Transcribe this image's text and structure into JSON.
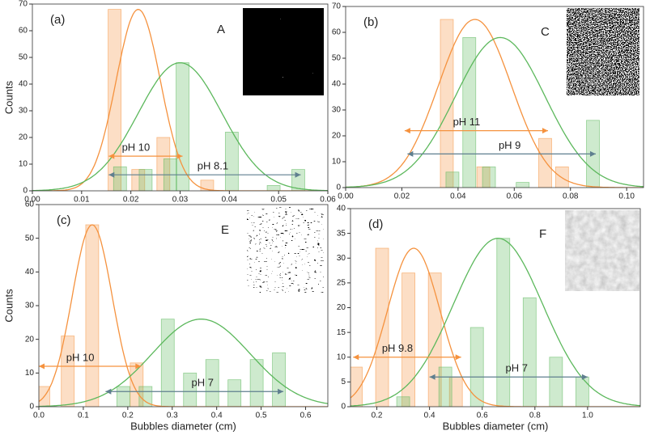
{
  "chart_data": [
    {
      "type": "bar",
      "label": "(a)",
      "letter": "A",
      "ylabel": "Counts",
      "xlim": [
        0,
        0.06
      ],
      "xticks": [
        {
          "value": 0,
          "label": "0.00"
        },
        0.01,
        0.02,
        0.03,
        0.04,
        0.05,
        0.06
      ],
      "ylim": [
        0,
        70
      ],
      "yticks": [
        0,
        10,
        20,
        30,
        40,
        50,
        60,
        70
      ],
      "series": [
        {
          "color": "#f5923e",
          "x": [
            0.0167,
            0.0215,
            0.0266,
            0.0355
          ],
          "values": [
            68,
            8,
            20,
            4
          ]
        },
        {
          "color": "#5cb85c",
          "x": [
            0.0178,
            0.023,
            0.028,
            0.0305,
            0.0405,
            0.049,
            0.054
          ],
          "values": [
            9,
            8,
            12,
            48,
            22,
            2,
            8
          ]
        }
      ],
      "curves": [
        {
          "color": "#f5923e",
          "center": 0.0215,
          "peak": 68,
          "sigma": 0.0045
        },
        {
          "color": "#5cb85c",
          "center": 0.03,
          "peak": 48,
          "sigma": 0.0085
        }
      ],
      "arrows": [
        {
          "color": "#f5923e",
          "label": "pH 10",
          "from": 0.0155,
          "to": 0.0305,
          "y": 13
        },
        {
          "color": "#5f7f8f",
          "label": "pH 8.1",
          "from": 0.0155,
          "to": 0.0545,
          "y": 6
        }
      ]
    },
    {
      "type": "bar",
      "label": "(b)",
      "letter": "C",
      "xlim": [
        0,
        0.106
      ],
      "xticks": [
        {
          "value": 0,
          "label": "0.00"
        },
        0.02,
        0.04,
        0.06,
        0.08,
        {
          "value": 0.1,
          "label": "0.10"
        }
      ],
      "ylim": [
        0,
        70
      ],
      "yticks": [
        0,
        10,
        20,
        30,
        40,
        50,
        60,
        70
      ],
      "series": [
        {
          "color": "#f5923e",
          "x": [
            0.036,
            0.049,
            0.071,
            0.077
          ],
          "values": [
            65,
            8,
            19,
            8
          ]
        },
        {
          "color": "#5cb85c",
          "x": [
            0.038,
            0.044,
            0.051,
            0.063,
            0.088
          ],
          "values": [
            6,
            58,
            8,
            2,
            26
          ]
        }
      ],
      "curves": [
        {
          "color": "#f5923e",
          "center": 0.046,
          "peak": 65,
          "sigma": 0.013
        },
        {
          "color": "#5cb85c",
          "center": 0.055,
          "peak": 58,
          "sigma": 0.016
        }
      ],
      "arrows": [
        {
          "color": "#f5923e",
          "label": "pH 11",
          "from": 0.021,
          "to": 0.072,
          "y": 22
        },
        {
          "color": "#5f7f8f",
          "label": "pH 9",
          "from": 0.022,
          "to": 0.089,
          "y": 13
        }
      ]
    },
    {
      "type": "bar",
      "label": "(c)",
      "letter": "E",
      "ylabel": "Counts",
      "xlabel": "Bubbles diameter (cm)",
      "xlim": [
        0,
        0.65
      ],
      "xticks": [
        {
          "value": 0,
          "label": "0.0"
        },
        0.1,
        0.2,
        0.3,
        0.4,
        0.5,
        0.6
      ],
      "ylim": [
        0,
        60
      ],
      "yticks": [
        0,
        10,
        20,
        30,
        40,
        50,
        60
      ],
      "series": [
        {
          "color": "#f5923e",
          "x": [
            0.01,
            0.065,
            0.12,
            0.22
          ],
          "values": [
            6,
            21,
            54,
            13
          ]
        },
        {
          "color": "#5cb85c",
          "x": [
            0.19,
            0.24,
            0.29,
            0.34,
            0.39,
            0.44,
            0.49,
            0.54
          ],
          "values": [
            6,
            6,
            26,
            10,
            14,
            8,
            14,
            16
          ]
        }
      ],
      "curves": [
        {
          "color": "#f5923e",
          "center": 0.12,
          "peak": 54,
          "sigma": 0.045
        },
        {
          "color": "#5cb85c",
          "center": 0.365,
          "peak": 26,
          "sigma": 0.11
        }
      ],
      "arrows": [
        {
          "color": "#f5923e",
          "label": "pH 10",
          "from": 0.0,
          "to": 0.23,
          "y": 12
        },
        {
          "color": "#5f7f8f",
          "label": "pH 7",
          "from": 0.15,
          "to": 0.55,
          "y": 4.5
        }
      ]
    },
    {
      "type": "bar",
      "label": "(d)",
      "letter": "F",
      "xlabel": "Bubbles diameter (cm)",
      "xlim": [
        0.1,
        1.2
      ],
      "xticks": [
        0.2,
        0.4,
        0.6,
        0.8,
        {
          "value": 1,
          "label": "1.0"
        }
      ],
      "ylim": [
        0,
        40
      ],
      "yticks": [
        0,
        5,
        10,
        15,
        20,
        25,
        30,
        35,
        40
      ],
      "series": [
        {
          "color": "#f5923e",
          "x": [
            0.12,
            0.22,
            0.32,
            0.42,
            0.5
          ],
          "values": [
            8,
            32,
            27,
            27,
            6
          ]
        },
        {
          "color": "#5cb85c",
          "x": [
            0.3,
            0.46,
            0.58,
            0.68,
            0.78,
            0.88,
            0.98
          ],
          "values": [
            2,
            8,
            16,
            34,
            22,
            10,
            6
          ]
        }
      ],
      "curves": [
        {
          "color": "#f5923e",
          "center": 0.34,
          "peak": 32,
          "sigma": 0.1
        },
        {
          "color": "#5cb85c",
          "center": 0.66,
          "peak": 34,
          "sigma": 0.17
        }
      ],
      "arrows": [
        {
          "color": "#f5923e",
          "label": "pH 9.8",
          "from": 0.11,
          "to": 0.52,
          "y": 10
        },
        {
          "color": "#5f7f8f",
          "label": "pH 7",
          "from": 0.4,
          "to": 1.0,
          "y": 6
        }
      ]
    }
  ]
}
